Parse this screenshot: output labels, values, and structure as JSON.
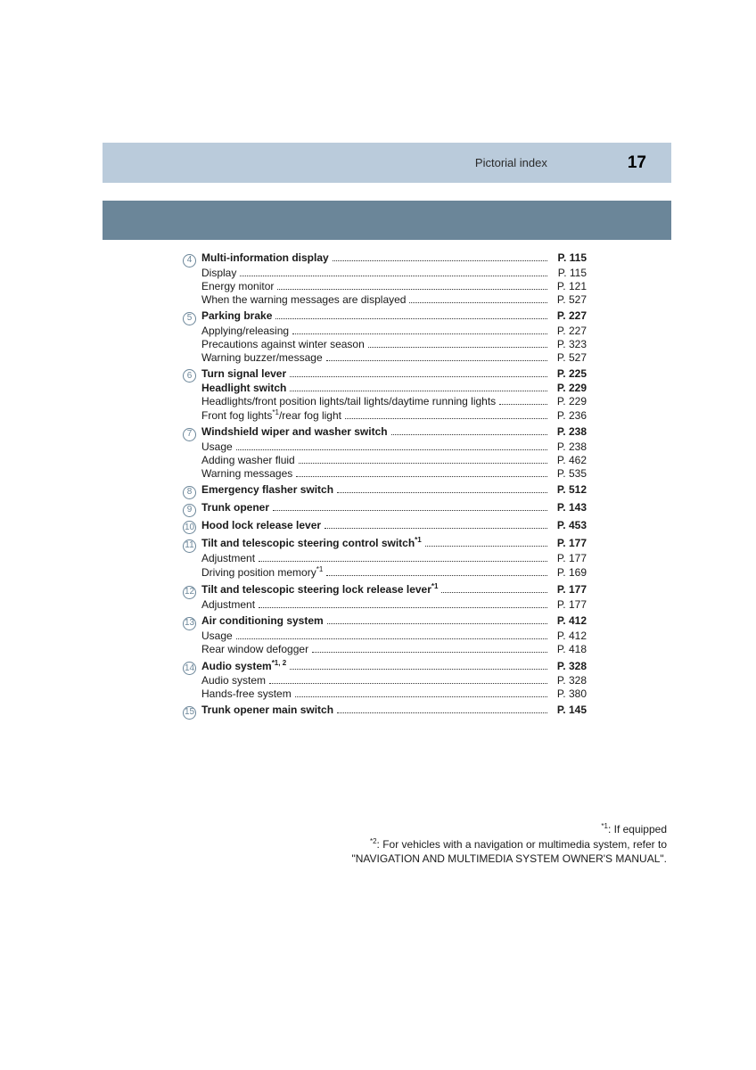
{
  "header": {
    "title": "Pictorial index",
    "page_number": "17"
  },
  "colors": {
    "header_bg": "#bacbdb",
    "sub_bar_bg": "#6b8699",
    "circle_border": "#6b8699",
    "text": "#1a1a1a"
  },
  "sections": [
    {
      "num": "4",
      "main": {
        "label": "Multi-information display",
        "page": "P. 115",
        "bold": true
      },
      "subs": [
        {
          "label": "Display",
          "page": "P. 115"
        },
        {
          "label": "Energy monitor",
          "page": "P. 121"
        },
        {
          "label": "When the warning messages are displayed",
          "page": "P. 527"
        }
      ]
    },
    {
      "num": "5",
      "main": {
        "label": "Parking brake",
        "page": "P. 227",
        "bold": true
      },
      "subs": [
        {
          "label": "Applying/releasing",
          "page": "P. 227"
        },
        {
          "label": "Precautions against winter season",
          "page": "P. 323"
        },
        {
          "label": "Warning buzzer/message",
          "page": "P. 527"
        }
      ]
    },
    {
      "num": "6",
      "main": {
        "label": "Turn signal lever",
        "page": "P. 225",
        "bold": true
      },
      "subs": [
        {
          "label": "Headlight switch",
          "page": "P. 229",
          "bold": true
        },
        {
          "label": "Headlights/front position lights/tail lights/daytime running lights",
          "page": "P. 229"
        },
        {
          "label": "Front fog lights<sup>*1</sup>/rear fog light",
          "page": "P. 236"
        }
      ]
    },
    {
      "num": "7",
      "main": {
        "label": "Windshield wiper and washer switch",
        "page": "P. 238",
        "bold": true
      },
      "subs": [
        {
          "label": "Usage",
          "page": "P. 238"
        },
        {
          "label": "Adding washer fluid",
          "page": "P. 462"
        },
        {
          "label": "Warning messages",
          "page": "P. 535"
        }
      ]
    },
    {
      "num": "8",
      "main": {
        "label": "Emergency flasher switch",
        "page": "P. 512",
        "bold": true
      },
      "subs": []
    },
    {
      "num": "9",
      "main": {
        "label": "Trunk opener",
        "page": "P. 143",
        "bold": true
      },
      "subs": []
    },
    {
      "num": "10",
      "main": {
        "label": "Hood lock release lever",
        "page": "P. 453",
        "bold": true
      },
      "subs": []
    },
    {
      "num": "11",
      "main": {
        "label": "Tilt and telescopic steering control switch<sup>*1</sup>",
        "page": "P. 177",
        "bold": true
      },
      "subs": [
        {
          "label": "Adjustment",
          "page": "P. 177"
        },
        {
          "label": "Driving position memory<sup>*1</sup>",
          "page": "P. 169"
        }
      ]
    },
    {
      "num": "12",
      "main": {
        "label": "Tilt and telescopic steering lock release lever<sup>*1</sup>",
        "page": "P. 177",
        "bold": true
      },
      "subs": [
        {
          "label": "Adjustment",
          "page": "P. 177"
        }
      ]
    },
    {
      "num": "13",
      "main": {
        "label": "Air conditioning system",
        "page": "P. 412",
        "bold": true
      },
      "subs": [
        {
          "label": "Usage",
          "page": "P. 412"
        },
        {
          "label": "Rear window defogger",
          "page": "P. 418"
        }
      ]
    },
    {
      "num": "14",
      "main": {
        "label": "Audio system<sup>*1, 2</sup>",
        "page": "P. 328",
        "bold": true
      },
      "subs": [
        {
          "label": "Audio system",
          "page": "P. 328"
        },
        {
          "label": "Hands-free system",
          "page": "P. 380"
        }
      ]
    },
    {
      "num": "15",
      "main": {
        "label": "Trunk opener main switch",
        "page": "P. 145",
        "bold": true
      },
      "subs": []
    }
  ],
  "footnotes": [
    "<sup>*1</sup>: If equipped",
    "<sup>*2</sup>: For vehicles with a navigation or multimedia system, refer to",
    "\"NAVIGATION AND MULTIMEDIA SYSTEM OWNER'S MANUAL\"."
  ]
}
